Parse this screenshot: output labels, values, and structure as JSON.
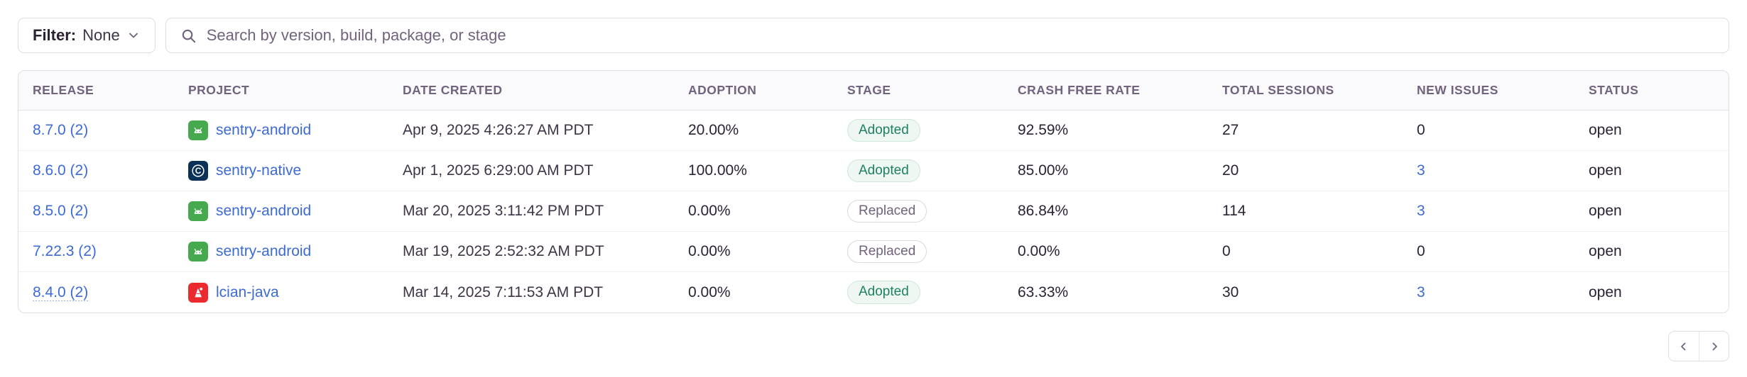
{
  "toolbar": {
    "filter_label": "Filter:",
    "filter_value": "None",
    "search_placeholder": "Search by version, build, package, or stage",
    "search_icon": "search-icon",
    "filter_chevron_icon": "chevron-down-icon"
  },
  "table": {
    "columns": [
      "Release",
      "Project",
      "Date Created",
      "Adoption",
      "Stage",
      "Crash Free Rate",
      "Total Sessions",
      "New Issues",
      "Status"
    ],
    "rows": [
      {
        "release": "8.7.0 (2)",
        "project": "sentry-android",
        "project_icon": "android-icon",
        "date_created": "Apr 9, 2025 4:26:27 AM PDT",
        "adoption": "20.00%",
        "stage": "Adopted",
        "stage_variant": "adopted",
        "crash_free_rate": "92.59%",
        "total_sessions": "27",
        "new_issues": "0",
        "new_issues_link": false,
        "status": "open"
      },
      {
        "release": "8.6.0 (2)",
        "project": "sentry-native",
        "project_icon": "c-icon",
        "date_created": "Apr 1, 2025 6:29:00 AM PDT",
        "adoption": "100.00%",
        "stage": "Adopted",
        "stage_variant": "adopted",
        "crash_free_rate": "85.00%",
        "total_sessions": "20",
        "new_issues": "3",
        "new_issues_link": true,
        "status": "open"
      },
      {
        "release": "8.5.0 (2)",
        "project": "sentry-android",
        "project_icon": "android-icon",
        "date_created": "Mar 20, 2025 3:11:42 PM PDT",
        "adoption": "0.00%",
        "stage": "Replaced",
        "stage_variant": "replaced",
        "crash_free_rate": "86.84%",
        "total_sessions": "114",
        "new_issues": "3",
        "new_issues_link": true,
        "status": "open"
      },
      {
        "release": "7.22.3 (2)",
        "project": "sentry-android",
        "project_icon": "android-icon",
        "date_created": "Mar 19, 2025 2:52:32 AM PDT",
        "adoption": "0.00%",
        "stage": "Replaced",
        "stage_variant": "replaced",
        "crash_free_rate": "0.00%",
        "total_sessions": "0",
        "new_issues": "0",
        "new_issues_link": false,
        "status": "open"
      },
      {
        "release": "8.4.0 (2)",
        "project": "lcian-java",
        "project_icon": "java-icon",
        "date_created": "Mar 14, 2025 7:11:53 AM PDT",
        "adoption": "0.00%",
        "stage": "Adopted",
        "stage_variant": "adopted",
        "crash_free_rate": "63.33%",
        "total_sessions": "30",
        "new_issues": "3",
        "new_issues_link": true,
        "status": "open"
      }
    ]
  },
  "pagination": {
    "prev_icon": "chevron-left-icon",
    "next_icon": "chevron-right-icon"
  },
  "colors": {
    "link_blue": "#3C6AD6",
    "text_primary": "#2B2233",
    "text_muted": "#71637E",
    "border": "#E0DCE5",
    "header_bg": "#FAF9FB",
    "badge_adopted_text": "#1F7F64",
    "badge_adopted_bg": "#EEF7F2",
    "android_icon_bg": "#46A94E",
    "c_icon_bg": "#0B3157",
    "java_icon_bg": "#EB2A2E"
  }
}
